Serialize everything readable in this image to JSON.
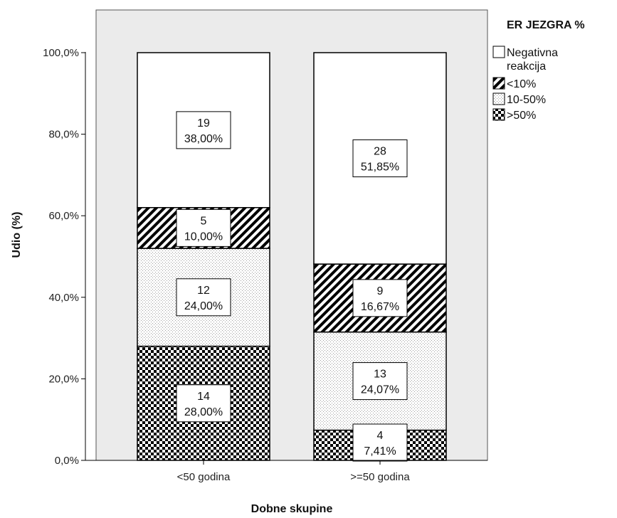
{
  "chart_data": {
    "type": "bar",
    "stacked": true,
    "xlabel": "Dobne skupine",
    "ylabel": "Udio (%)",
    "ylim": [
      0,
      100
    ],
    "yticks": [
      "0,0%",
      "20,0%",
      "40,0%",
      "60,0%",
      "80,0%",
      "100,0%"
    ],
    "categories": [
      "<50 godina",
      ">=50 godina"
    ],
    "legend": {
      "title": "ER JEZGRA %",
      "placement": "right",
      "entries": [
        "Negativna reakcija",
        "<10%",
        "10-50%",
        ">50%"
      ]
    },
    "series": [
      {
        "name": ">50%",
        "pattern": "checker",
        "counts": [
          14,
          4
        ],
        "values": [
          28.0,
          7.41
        ],
        "labels": [
          "28,00%",
          "7,41%"
        ]
      },
      {
        "name": "10-50%",
        "pattern": "dotted",
        "counts": [
          12,
          13
        ],
        "values": [
          24.0,
          24.07
        ],
        "labels": [
          "24,00%",
          "24,07%"
        ]
      },
      {
        "name": "<10%",
        "pattern": "hatch",
        "counts": [
          5,
          9
        ],
        "values": [
          10.0,
          16.67
        ],
        "labels": [
          "10,00%",
          "16,67%"
        ]
      },
      {
        "name": "Negativna reakcija",
        "pattern": "white",
        "counts": [
          19,
          28
        ],
        "values": [
          38.0,
          51.85
        ],
        "labels": [
          "38,00%",
          "51,85%"
        ]
      }
    ],
    "grid": false,
    "colors": {
      "plot_background": "#ebebeb",
      "bar_fill": "#ffffff",
      "ink": "#000000"
    }
  }
}
